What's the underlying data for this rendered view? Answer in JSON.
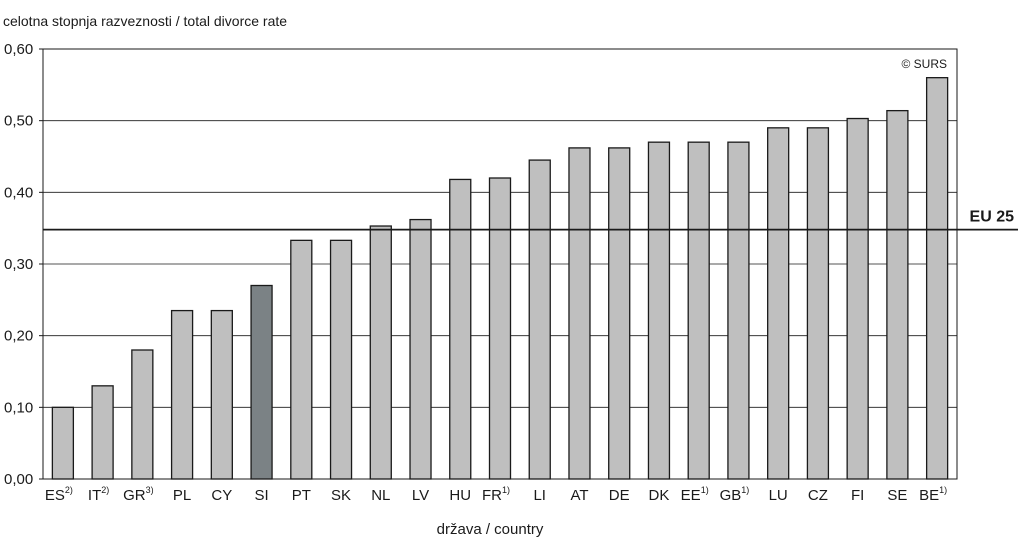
{
  "chart_data": {
    "type": "bar",
    "title": "",
    "ylabel": "celotna stopnja razveznosti / total divorce rate",
    "xlabel": "država / country",
    "credit": "© SURS",
    "ylim": [
      0,
      0.6
    ],
    "yticks": [
      0,
      0.1,
      0.2,
      0.3,
      0.4,
      0.5,
      0.6
    ],
    "ytick_labels": [
      "0,00",
      "0,10",
      "0,20",
      "0,30",
      "0,40",
      "0,50",
      "0,60"
    ],
    "grid": true,
    "categories": [
      {
        "label": "ES",
        "note": "2)"
      },
      {
        "label": "IT",
        "note": "2)"
      },
      {
        "label": "GR",
        "note": "3)"
      },
      {
        "label": "PL",
        "note": ""
      },
      {
        "label": "CY",
        "note": ""
      },
      {
        "label": "SI",
        "note": ""
      },
      {
        "label": "PT",
        "note": ""
      },
      {
        "label": "SK",
        "note": ""
      },
      {
        "label": "NL",
        "note": ""
      },
      {
        "label": "LV",
        "note": ""
      },
      {
        "label": "HU",
        "note": ""
      },
      {
        "label": "FR",
        "note": "1)"
      },
      {
        "label": "LI",
        "note": ""
      },
      {
        "label": "AT",
        "note": ""
      },
      {
        "label": "DE",
        "note": ""
      },
      {
        "label": "DK",
        "note": ""
      },
      {
        "label": "EE",
        "note": "1)"
      },
      {
        "label": "GB",
        "note": "1)"
      },
      {
        "label": "LU",
        "note": ""
      },
      {
        "label": "CZ",
        "note": ""
      },
      {
        "label": "FI",
        "note": ""
      },
      {
        "label": "SE",
        "note": ""
      },
      {
        "label": "BE",
        "note": "1)"
      }
    ],
    "values": [
      0.1,
      0.13,
      0.18,
      0.235,
      0.235,
      0.27,
      0.333,
      0.333,
      0.353,
      0.362,
      0.418,
      0.42,
      0.445,
      0.462,
      0.462,
      0.47,
      0.47,
      0.47,
      0.49,
      0.49,
      0.503,
      0.514,
      0.56
    ],
    "highlight_category": "SI",
    "reference_line": {
      "label": "EU 25",
      "value": 0.348
    },
    "colors": {
      "bar": "#bfbfbf",
      "bar_highlight": "#7b8285",
      "bar_outline": "#1a1a1a",
      "grid": "#1a1a1a",
      "reference": "#1a1a1a"
    }
  }
}
